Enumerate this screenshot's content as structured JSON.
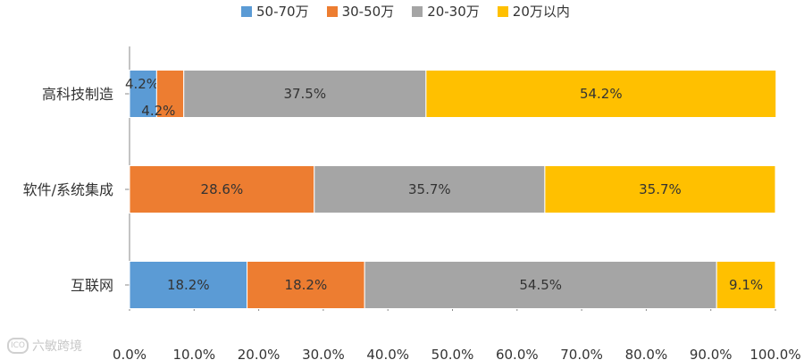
{
  "chart_data": {
    "type": "bar",
    "orientation": "horizontal",
    "stacked": true,
    "categories": [
      "高科技制造",
      "软件/系统集成",
      "互联网"
    ],
    "series": [
      {
        "name": "50-70万",
        "color": "#5B9BD5",
        "values": [
          4.2,
          0.0,
          18.2
        ]
      },
      {
        "name": "30-50万",
        "color": "#ED7D31",
        "values": [
          4.2,
          28.6,
          18.2
        ]
      },
      {
        "name": "20-30万",
        "color": "#A5A5A5",
        "values": [
          37.5,
          35.7,
          54.5
        ]
      },
      {
        "name": "20万以内",
        "color": "#FFC000",
        "values": [
          54.2,
          35.7,
          9.1
        ]
      }
    ],
    "data_labels": [
      [
        "4.2%",
        "4.2%",
        "37.5%",
        "54.2%"
      ],
      [
        "",
        "28.6%",
        "35.7%",
        "35.7%"
      ],
      [
        "18.2%",
        "18.2%",
        "54.5%",
        "9.1%"
      ]
    ],
    "xlim": [
      0,
      100
    ],
    "x_ticks": [
      "0.0%",
      "10.0%",
      "20.0%",
      "30.0%",
      "40.0%",
      "50.0%",
      "60.0%",
      "70.0%",
      "80.0%",
      "90.0%",
      "100.0%"
    ],
    "legend_position": "top",
    "grid": false
  },
  "watermark": {
    "logo": "ICO",
    "text": "六敏跨境"
  }
}
